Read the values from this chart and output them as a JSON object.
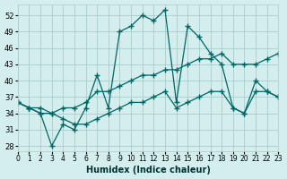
{
  "xlabel": "Humidex (Indice chaleur)",
  "bg_color": "#d4eded",
  "grid_color": "#aacccc",
  "line_color": "#006666",
  "xlim": [
    0,
    23
  ],
  "ylim": [
    27,
    54
  ],
  "yticks": [
    28,
    31,
    34,
    37,
    40,
    43,
    46,
    49,
    52
  ],
  "xticks": [
    0,
    1,
    2,
    3,
    4,
    5,
    6,
    7,
    8,
    9,
    10,
    11,
    12,
    13,
    14,
    15,
    16,
    17,
    18,
    19,
    20,
    21,
    22,
    23
  ],
  "series1": [
    36,
    35,
    34,
    28,
    32,
    31,
    35,
    41,
    35,
    49,
    50,
    52,
    51,
    53,
    36,
    50,
    48,
    45,
    43,
    35,
    34,
    40,
    38,
    37
  ],
  "series2": [
    36,
    35,
    34,
    34,
    35,
    35,
    36,
    38,
    38,
    39,
    40,
    41,
    41,
    42,
    42,
    43,
    44,
    44,
    45,
    43,
    43,
    43,
    44,
    45
  ],
  "series3": [
    36,
    35,
    35,
    34,
    33,
    32,
    32,
    33,
    34,
    35,
    36,
    36,
    37,
    38,
    35,
    36,
    37,
    38,
    38,
    35,
    34,
    38,
    38,
    37
  ]
}
